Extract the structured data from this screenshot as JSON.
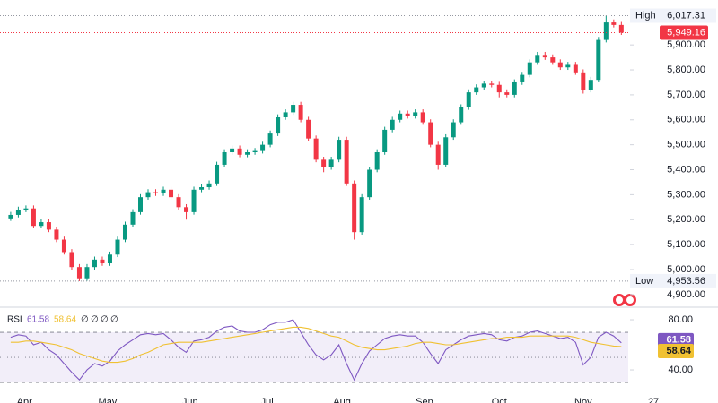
{
  "chart_data": [
    {
      "type": "candlestick",
      "up_color": "#089981",
      "down_color": "#f23645",
      "xlim": [
        -1.4,
        80.9
      ],
      "ylim": [
        4860,
        6080
      ],
      "yticks": [
        {
          "value": 4900,
          "label": "4,900.00"
        },
        {
          "value": 5000,
          "label": "5,000.00"
        },
        {
          "value": 5100,
          "label": "5,100.00"
        },
        {
          "value": 5200,
          "label": "5,200.00"
        },
        {
          "value": 5300,
          "label": "5,300.00"
        },
        {
          "value": 5400,
          "label": "5,400.00"
        },
        {
          "value": 5500,
          "label": "5,500.00"
        },
        {
          "value": 5600,
          "label": "5,600.00"
        },
        {
          "value": 5700,
          "label": "5,700.00"
        },
        {
          "value": 5800,
          "label": "5,800.00"
        },
        {
          "value": 5900,
          "label": "5,900.00"
        }
      ],
      "high_marker": {
        "label": "High",
        "value": 6017.31,
        "value_label": "6,017.31"
      },
      "low_marker": {
        "label": "Low",
        "value": 4953.56,
        "value_label": "4,953.56"
      },
      "last_price": {
        "value": 5949.16,
        "value_label": "5,949.16",
        "color": "#f23645"
      },
      "open": [
        5205,
        5219,
        5240,
        5245,
        5175,
        5190,
        5160,
        5120,
        5070,
        5010,
        4965,
        5010,
        5040,
        5025,
        5060,
        5120,
        5180,
        5230,
        5290,
        5310,
        5305,
        5320,
        5290,
        5250,
        5230,
        5320,
        5330,
        5345,
        5420,
        5470,
        5485,
        5460,
        5470,
        5475,
        5500,
        5545,
        5610,
        5630,
        5660,
        5600,
        5525,
        5440,
        5410,
        5440,
        5520,
        5345,
        5150,
        5290,
        5400,
        5470,
        5560,
        5600,
        5625,
        5615,
        5630,
        5590,
        5500,
        5420,
        5530,
        5590,
        5650,
        5710,
        5730,
        5745,
        5740,
        5710,
        5700,
        5750,
        5780,
        5830,
        5860,
        5850,
        5830,
        5810,
        5820,
        5790,
        5720,
        5760,
        5920,
        5990,
        5980
      ],
      "high": [
        5231,
        5252,
        5257,
        5257,
        5202,
        5202,
        5172,
        5132,
        5082,
        5022,
        5022,
        5052,
        5052,
        5072,
        5132,
        5192,
        5242,
        5302,
        5322,
        5322,
        5332,
        5332,
        5302,
        5262,
        5332,
        5342,
        5357,
        5432,
        5482,
        5497,
        5497,
        5482,
        5487,
        5512,
        5557,
        5622,
        5642,
        5672,
        5672,
        5612,
        5537,
        5452,
        5452,
        5532,
        5532,
        5357,
        5302,
        5412,
        5482,
        5572,
        5612,
        5637,
        5637,
        5642,
        5642,
        5602,
        5512,
        5542,
        5602,
        5662,
        5722,
        5742,
        5757,
        5757,
        5752,
        5722,
        5762,
        5792,
        5842,
        5872,
        5872,
        5862,
        5842,
        5832,
        5832,
        5802,
        5772,
        5932,
        6017.31,
        6002,
        5992
      ],
      "low": [
        5195,
        5209,
        5230,
        5165,
        5165,
        5150,
        5110,
        5060,
        5000,
        4953.56,
        4955,
        5000,
        5015,
        5015,
        5050,
        5110,
        5170,
        5220,
        5280,
        5295,
        5295,
        5280,
        5240,
        5200,
        5220,
        5310,
        5320,
        5335,
        5410,
        5460,
        5450,
        5450,
        5460,
        5465,
        5490,
        5535,
        5600,
        5620,
        5590,
        5515,
        5430,
        5390,
        5400,
        5430,
        5335,
        5120,
        5140,
        5280,
        5390,
        5460,
        5550,
        5590,
        5605,
        5605,
        5580,
        5490,
        5400,
        5410,
        5520,
        5580,
        5640,
        5700,
        5720,
        5730,
        5690,
        5690,
        5690,
        5740,
        5770,
        5820,
        5840,
        5820,
        5800,
        5800,
        5780,
        5705,
        5710,
        5750,
        5910,
        5970,
        5940
      ],
      "close": [
        5219,
        5240,
        5245,
        5175,
        5190,
        5160,
        5120,
        5070,
        5010,
        4965,
        5010,
        5040,
        5025,
        5060,
        5120,
        5180,
        5230,
        5290,
        5310,
        5305,
        5320,
        5290,
        5250,
        5230,
        5320,
        5330,
        5345,
        5420,
        5470,
        5485,
        5460,
        5470,
        5475,
        5500,
        5545,
        5610,
        5630,
        5660,
        5600,
        5525,
        5440,
        5410,
        5440,
        5520,
        5345,
        5150,
        5290,
        5400,
        5470,
        5560,
        5600,
        5625,
        5615,
        5630,
        5590,
        5500,
        5420,
        5530,
        5590,
        5650,
        5710,
        5730,
        5745,
        5740,
        5710,
        5700,
        5750,
        5780,
        5830,
        5860,
        5850,
        5830,
        5810,
        5820,
        5790,
        5720,
        5760,
        5920,
        5990,
        5980,
        5949.16
      ]
    },
    {
      "type": "line",
      "title": "RSI",
      "legend_extras": [
        "∅",
        "∅",
        "∅",
        "∅"
      ],
      "xlim": [
        -1.4,
        80.9
      ],
      "ylim": [
        13.6,
        88.6
      ],
      "yticks": [
        {
          "value": 80,
          "label": "80.00"
        },
        {
          "value": 40,
          "label": "40.00"
        }
      ],
      "band": [
        30,
        70
      ],
      "band_color": "#7e57c2",
      "mid": 50,
      "xticks": [
        {
          "value": 1.8,
          "label": "Apr"
        },
        {
          "value": 12.7,
          "label": "May"
        },
        {
          "value": 23.5,
          "label": "Jun"
        },
        {
          "value": 33.6,
          "label": "Jul"
        },
        {
          "value": 43.4,
          "label": "Aug"
        },
        {
          "value": 54.2,
          "label": "Sep"
        },
        {
          "value": 64,
          "label": "Oct"
        },
        {
          "value": 75,
          "label": "Nov"
        },
        {
          "value": 84.2,
          "label": "27"
        }
      ],
      "series": [
        {
          "color": "#7e57c2",
          "values": [
            66,
            68,
            67,
            60,
            62,
            56,
            52,
            45,
            38,
            32,
            40,
            45,
            43,
            47,
            55,
            60,
            64,
            68,
            69,
            68,
            69,
            64,
            58,
            54,
            63,
            64,
            66,
            71,
            74,
            75,
            71,
            70,
            70,
            72,
            76,
            78,
            78,
            80,
            70,
            60,
            52,
            48,
            52,
            60,
            45,
            32,
            45,
            55,
            60,
            65,
            67,
            68,
            67,
            67,
            62,
            53,
            45,
            56,
            60,
            64,
            67,
            68,
            69,
            68,
            64,
            63,
            66,
            67,
            70,
            71,
            69,
            67,
            65,
            66,
            62,
            44,
            50,
            66,
            70,
            67,
            61.58
          ]
        },
        {
          "color": "#f0c132",
          "values": [
            62,
            62,
            63,
            63,
            62,
            61,
            60,
            58,
            56,
            53,
            51,
            49,
            47,
            46,
            46,
            47,
            49,
            52,
            54,
            57,
            60,
            61,
            62,
            62,
            62,
            62,
            63,
            64,
            65,
            66,
            67,
            68,
            69,
            70,
            71,
            72,
            73,
            74,
            74,
            73,
            71,
            69,
            67,
            66,
            63,
            60,
            58,
            57,
            56,
            56,
            57,
            58,
            59,
            61,
            62,
            62,
            61,
            60,
            60,
            61,
            62,
            63,
            64,
            65,
            65,
            66,
            66,
            66,
            67,
            67,
            67,
            67,
            67,
            67,
            66,
            64,
            62,
            61,
            60,
            59,
            58.64
          ]
        }
      ]
    }
  ]
}
